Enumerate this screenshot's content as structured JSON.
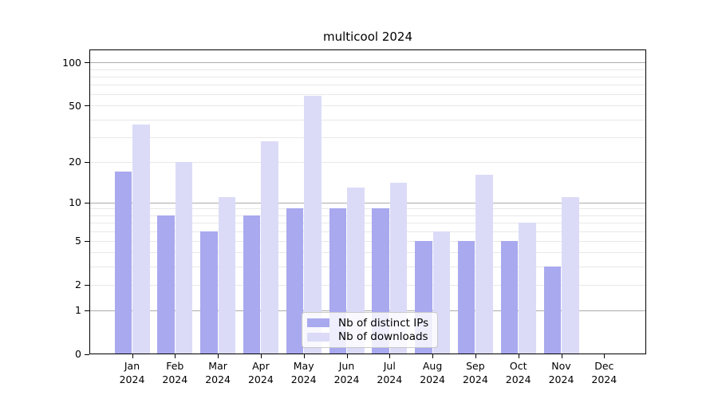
{
  "chart_data": {
    "type": "bar",
    "title": "multicool 2024",
    "year_label": "2024",
    "categories": [
      "Jan",
      "Feb",
      "Mar",
      "Apr",
      "May",
      "Jun",
      "Jul",
      "Aug",
      "Sep",
      "Oct",
      "Nov",
      "Dec"
    ],
    "series": [
      {
        "name": "Nb of distinct IPs",
        "color": "#a9a9ef",
        "values": [
          17,
          8,
          6,
          8,
          9,
          9,
          9,
          5,
          5,
          5,
          3,
          0
        ]
      },
      {
        "name": "Nb of downloads",
        "color": "#dbdbf8",
        "values": [
          37,
          20,
          11,
          28,
          59,
          13,
          14,
          6,
          16,
          7,
          11,
          0
        ]
      }
    ],
    "xlabel": "",
    "ylabel": "",
    "y_axis": {
      "scale": "log10(value+1)",
      "ylim": [
        0,
        123
      ],
      "tick_labels": [
        0,
        1,
        2,
        5,
        10,
        20,
        50,
        100
      ],
      "major_gridlines": [
        1,
        10,
        100
      ],
      "minor_gridlines": [
        2,
        3,
        4,
        5,
        6,
        7,
        8,
        9,
        20,
        30,
        40,
        50,
        60,
        70,
        80,
        90
      ]
    },
    "grid": "on",
    "legend_position": "lower center",
    "colors": {
      "grid_minor": "#e8e8e8",
      "grid_major": "#ababab",
      "axis": "#000000",
      "legend_border": "#c9c9c9",
      "background": "#ffffff"
    }
  }
}
